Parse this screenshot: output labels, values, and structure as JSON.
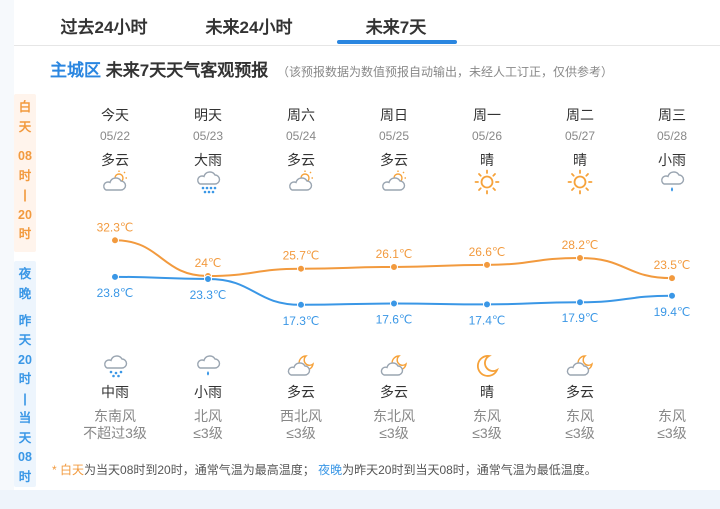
{
  "tabs": [
    {
      "label": "过去24小时",
      "active": false
    },
    {
      "label": "未来24小时",
      "active": false
    },
    {
      "label": "未来7天",
      "active": true
    }
  ],
  "header": {
    "district": "主城区",
    "title": "未来7天天气客观预报",
    "note": "（该预报数据为数值预报自动输出，未经人工订正，仅供参考）"
  },
  "side": {
    "day_chars": [
      "白",
      "天",
      "",
      "08",
      "时",
      "|",
      "20",
      "时"
    ],
    "night_chars": [
      "夜",
      "晚",
      "",
      "昨",
      "天",
      "20",
      "时",
      "|",
      "当",
      "天",
      "08",
      "时"
    ]
  },
  "days": [
    {
      "name": "今天",
      "date": "05/22",
      "day_weather": "多云",
      "day_icon": "partly-cloudy-day-icon",
      "night_weather": "中雨",
      "night_icon": "rain-icon",
      "wind_dir": "东南风",
      "wind_level": "不超过3级"
    },
    {
      "name": "明天",
      "date": "05/23",
      "day_weather": "大雨",
      "day_icon": "heavy-rain-icon",
      "night_weather": "小雨",
      "night_icon": "light-rain-icon",
      "wind_dir": "北风",
      "wind_level": "≤3级"
    },
    {
      "name": "周六",
      "date": "05/24",
      "day_weather": "多云",
      "day_icon": "partly-cloudy-day-icon",
      "night_weather": "多云",
      "night_icon": "partly-cloudy-night-icon",
      "wind_dir": "西北风",
      "wind_level": "≤3级"
    },
    {
      "name": "周日",
      "date": "05/25",
      "day_weather": "多云",
      "day_icon": "partly-cloudy-day-icon",
      "night_weather": "多云",
      "night_icon": "partly-cloudy-night-icon",
      "wind_dir": "东北风",
      "wind_level": "≤3级"
    },
    {
      "name": "周一",
      "date": "05/26",
      "day_weather": "晴",
      "day_icon": "sun-icon",
      "night_weather": "晴",
      "night_icon": "moon-icon",
      "wind_dir": "东风",
      "wind_level": "≤3级"
    },
    {
      "name": "周二",
      "date": "05/27",
      "day_weather": "晴",
      "day_icon": "sun-icon",
      "night_weather": "多云",
      "night_icon": "partly-cloudy-night-icon",
      "wind_dir": "东风",
      "wind_level": "≤3级"
    },
    {
      "name": "周三",
      "date": "05/28",
      "day_weather": "小雨",
      "day_icon": "light-rain-icon",
      "night_weather": "",
      "night_icon": "",
      "wind_dir": "东风",
      "wind_level": "≤3级"
    }
  ],
  "chart_data": {
    "type": "line",
    "x": [
      "05/22",
      "05/23",
      "05/24",
      "05/25",
      "05/26",
      "05/27",
      "05/28"
    ],
    "series": [
      {
        "name": "白天",
        "values": [
          32.3,
          24,
          25.7,
          26.1,
          26.6,
          28.2,
          23.5
        ],
        "labels": [
          "32.3℃",
          "24℃",
          "25.7℃",
          "26.1℃",
          "26.6℃",
          "28.2℃",
          "23.5℃"
        ],
        "color": "#f29a3e"
      },
      {
        "name": "夜晚",
        "values": [
          23.8,
          23.3,
          17.3,
          17.6,
          17.4,
          17.9,
          19.4
        ],
        "labels": [
          "23.8℃",
          "23.3℃",
          "17.3℃",
          "17.6℃",
          "17.4℃",
          "17.9℃",
          "19.4℃"
        ],
        "color": "#3a97e6"
      }
    ]
  },
  "footnote": {
    "bullet": "* ",
    "day_term": "白天",
    "day_text": "为当天08时到20时，通常气温为最高温度；",
    "night_term": "夜晚",
    "night_text": "为昨天20时到当天08时，通常气温为最低温度。"
  },
  "colors": {
    "accent": "#2a86e0",
    "day": "#f29a3e",
    "night": "#3a97e6"
  }
}
